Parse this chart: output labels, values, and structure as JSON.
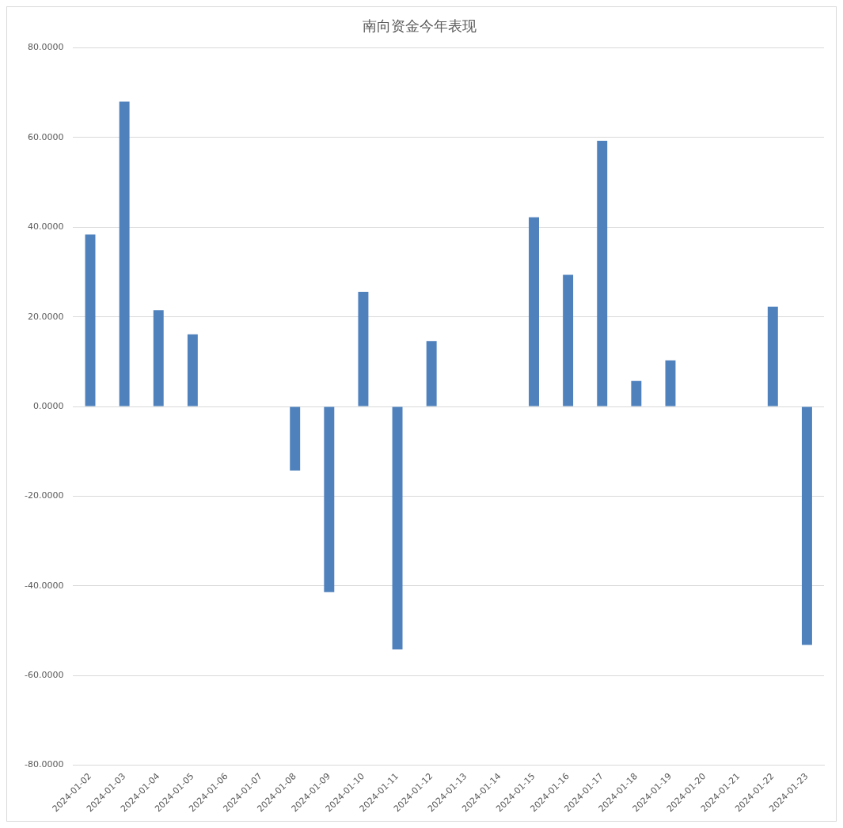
{
  "chart_data": {
    "type": "bar",
    "title": "南向资金今年表现",
    "categories": [
      "2024-01-02",
      "2024-01-03",
      "2024-01-04",
      "2024-01-05",
      "2024-01-06",
      "2024-01-07",
      "2024-01-08",
      "2024-01-09",
      "2024-01-10",
      "2024-01-11",
      "2024-01-12",
      "2024-01-13",
      "2024-01-14",
      "2024-01-15",
      "2024-01-16",
      "2024-01-17",
      "2024-01-18",
      "2024-01-19",
      "2024-01-20",
      "2024-01-21",
      "2024-01-22",
      "2024-01-23"
    ],
    "values": [
      38.4,
      68.0,
      21.5,
      16.1,
      null,
      null,
      -14.3,
      -41.4,
      25.6,
      -54.2,
      14.6,
      null,
      null,
      42.2,
      29.4,
      59.3,
      5.7,
      10.3,
      null,
      null,
      22.3,
      -53.2
    ],
    "color": "#4f81bd",
    "ylim": [
      -80,
      80
    ],
    "yticks": [
      {
        "value": -80,
        "label": "-80.0000"
      },
      {
        "value": -60,
        "label": "-60.0000"
      },
      {
        "value": -40,
        "label": "-40.0000"
      },
      {
        "value": -20,
        "label": "-20.0000"
      },
      {
        "value": 0,
        "label": "0.0000"
      },
      {
        "value": 20,
        "label": "20.0000"
      },
      {
        "value": 40,
        "label": "40.0000"
      },
      {
        "value": 60,
        "label": "60.0000"
      },
      {
        "value": 80,
        "label": "80.0000"
      }
    ],
    "grid": "y",
    "legend": false
  }
}
